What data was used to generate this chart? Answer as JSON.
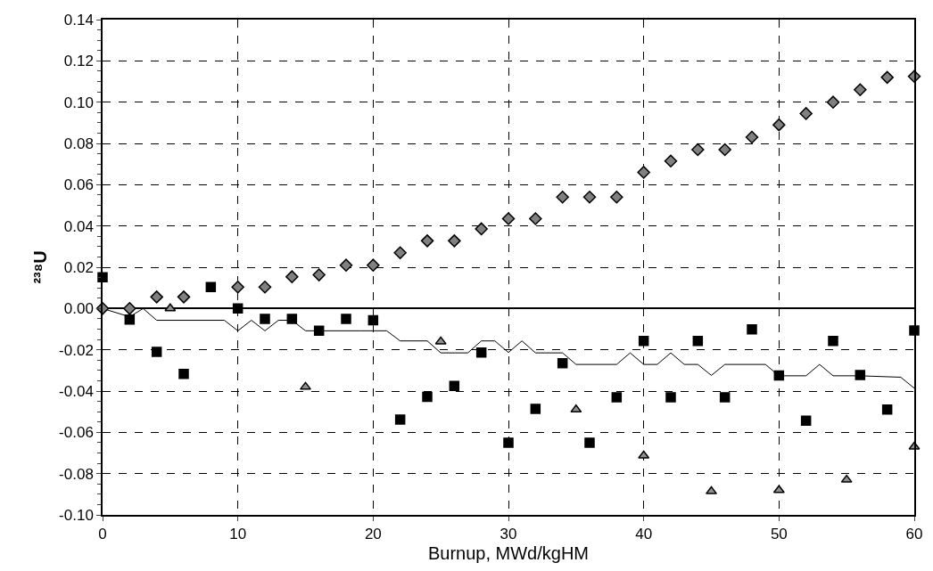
{
  "chart_data": {
    "type": "scatter",
    "xlabel": "Burnup, MWd/kgHM",
    "ylabel": "²³⁸U",
    "xlim": [
      0,
      60
    ],
    "xticks": [
      0,
      10,
      20,
      30,
      40,
      50,
      60
    ],
    "ylim": [
      -0.1,
      0.14
    ],
    "yticks": [
      {
        "value": -0.1,
        "label": "-0.10"
      },
      {
        "value": -0.08,
        "label": "-0.08"
      },
      {
        "value": -0.06,
        "label": "-0.06"
      },
      {
        "value": -0.04,
        "label": "-0.04"
      },
      {
        "value": -0.02,
        "label": "-0.02"
      },
      {
        "value": 0,
        "label": "0.00"
      },
      {
        "value": 0.02,
        "label": "0.02"
      },
      {
        "value": 0.04,
        "label": "0.04"
      },
      {
        "value": 0.06,
        "label": "0.06"
      },
      {
        "value": 0.08,
        "label": "0.08"
      },
      {
        "value": 0.1,
        "label": "0.10"
      },
      {
        "value": 0.12,
        "label": "0.12"
      },
      {
        "value": 0.14,
        "label": "0.14"
      }
    ],
    "grid": true,
    "series": [
      {
        "type": "line",
        "color": "#000000",
        "marker": "none",
        "line_style": "solid",
        "x": [
          0,
          2,
          3,
          4,
          9,
          10,
          11,
          12,
          13,
          14,
          15,
          19,
          20,
          21,
          22,
          24,
          25,
          27,
          28,
          29,
          30,
          31,
          32,
          34,
          35,
          38,
          39,
          40,
          41,
          42,
          43,
          44,
          45,
          46,
          49,
          50,
          52,
          53,
          54,
          56,
          59,
          60
        ],
        "values": [
          0,
          -0.004,
          0,
          -0.0057,
          -0.0057,
          -0.0108,
          -0.0057,
          -0.0108,
          -0.0057,
          -0.0057,
          -0.0108,
          -0.0108,
          -0.0108,
          -0.0108,
          -0.0157,
          -0.0157,
          -0.0215,
          -0.0215,
          -0.0157,
          -0.0157,
          -0.0213,
          -0.0157,
          -0.0215,
          -0.0215,
          -0.0271,
          -0.0271,
          -0.0215,
          -0.0271,
          -0.0271,
          -0.0215,
          -0.0271,
          -0.0271,
          -0.0324,
          -0.0271,
          -0.0271,
          -0.0326,
          -0.0326,
          -0.0271,
          -0.0326,
          -0.0326,
          -0.0333,
          -0.0386
        ]
      },
      {
        "color": "#808080",
        "marker": "diamond",
        "x": [
          0,
          2,
          4,
          6,
          8,
          10,
          12,
          14,
          16,
          18,
          20,
          22,
          24,
          26,
          28,
          30,
          32,
          34,
          36,
          38,
          40,
          42,
          44,
          46,
          48,
          50,
          52,
          54,
          56,
          58,
          60
        ],
        "values": [
          0,
          0,
          0.0056,
          0.0056,
          null,
          0.0104,
          0.0104,
          0.0154,
          0.0163,
          0.021,
          0.021,
          0.027,
          0.0328,
          0.0328,
          0.0386,
          0.0435,
          0.0435,
          0.054,
          0.054,
          0.054,
          0.066,
          0.0715,
          0.077,
          0.077,
          0.083,
          0.089,
          0.0945,
          0.1,
          0.106,
          0.112,
          0.1125
        ]
      },
      {
        "color": "#000000",
        "marker": "square",
        "x": [
          0,
          2,
          4,
          6,
          8,
          10,
          12,
          14,
          16,
          18,
          20,
          22,
          24,
          26,
          28,
          30,
          32,
          34,
          36,
          38,
          40,
          42,
          44,
          46,
          48,
          50,
          52,
          54,
          56,
          58,
          60
        ],
        "values": [
          0.0151,
          -0.0054,
          -0.021,
          -0.0317,
          0.0104,
          0,
          -0.005,
          -0.005,
          -0.0108,
          -0.005,
          -0.0057,
          -0.0538,
          -0.0428,
          -0.0375,
          -0.0213,
          -0.065,
          -0.0486,
          -0.0265,
          -0.065,
          -0.043,
          -0.0157,
          -0.043,
          -0.0157,
          -0.043,
          -0.0101,
          -0.0324,
          -0.0544,
          -0.0157,
          -0.0322,
          -0.049,
          -0.0106
        ]
      },
      {
        "color": "#909090",
        "marker": "triangle",
        "x": [
          5,
          15,
          25,
          35,
          40,
          45,
          50,
          55,
          60
        ],
        "values": [
          0,
          -0.038,
          -0.016,
          -0.049,
          -0.0713,
          -0.0886,
          -0.088,
          -0.083,
          -0.067
        ]
      }
    ]
  }
}
